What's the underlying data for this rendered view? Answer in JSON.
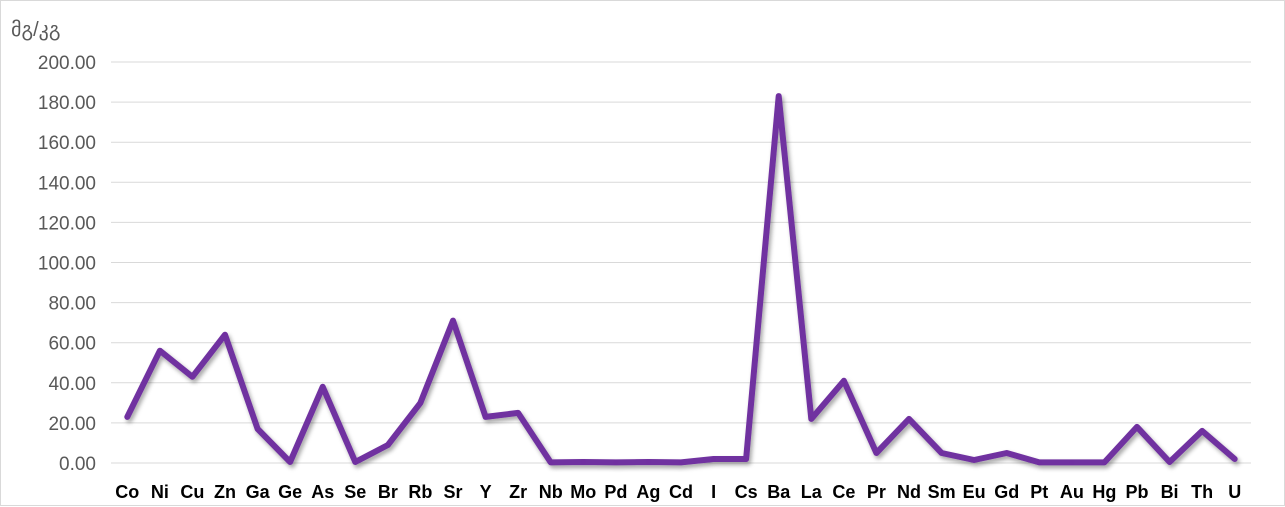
{
  "chart_data": {
    "type": "line",
    "ylabel": "მგ/კგ",
    "xlabel": "",
    "ylim": [
      0,
      200
    ],
    "y_ticks": [
      "0.00",
      "20.00",
      "40.00",
      "60.00",
      "80.00",
      "100.00",
      "120.00",
      "140.00",
      "160.00",
      "180.00",
      "200.00"
    ],
    "grid": true,
    "legend": "none",
    "categories": [
      "Co",
      "Ni",
      "Cu",
      "Zn",
      "Ga",
      "Ge",
      "As",
      "Se",
      "Br",
      "Rb",
      "Sr",
      "Y",
      "Zr",
      "Nb",
      "Mo",
      "Pd",
      "Ag",
      "Cd",
      "I",
      "Cs",
      "Ba",
      "La",
      "Ce",
      "Pr",
      "Nd",
      "Sm",
      "Eu",
      "Gd",
      "Pt",
      "Au",
      "Hg",
      "Pb",
      "Bi",
      "Th",
      "U"
    ],
    "series": [
      {
        "color": "#7030a0",
        "values": [
          23,
          56,
          43,
          64,
          17,
          0.5,
          38,
          0.5,
          9,
          30,
          71,
          23,
          25,
          0.3,
          0.5,
          0.3,
          0.5,
          0.3,
          2,
          2,
          183,
          22,
          41,
          5,
          22,
          5,
          1.5,
          5,
          0.3,
          0.3,
          0.3,
          18,
          0.5,
          16,
          2
        ]
      }
    ]
  }
}
